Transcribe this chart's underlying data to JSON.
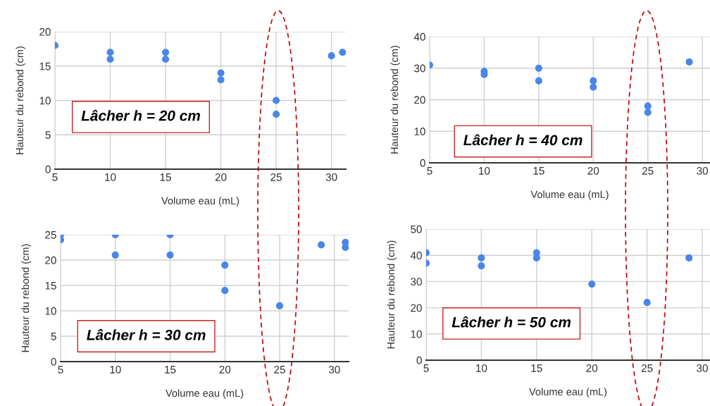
{
  "chart_data": [
    {
      "type": "scatter",
      "xlabel": "Volume eau (mL)",
      "ylabel": "Hauteur du rebond (cm)",
      "annotations": [
        "Lâcher h = 20 cm"
      ],
      "xlim": [
        5,
        31.3
      ],
      "xticks": [
        5,
        10,
        15,
        20,
        25,
        30
      ],
      "ylim": [
        0,
        20
      ],
      "yticks": [
        0,
        5,
        10,
        15,
        20
      ],
      "grid": true,
      "legend": false,
      "marker": "circle",
      "series": [
        {
          "color": "#4a86e8",
          "x": [
            5,
            10,
            10,
            15,
            15,
            20,
            20,
            25,
            25,
            30,
            31
          ],
          "values": [
            18,
            17,
            16,
            17,
            16,
            14,
            13,
            10,
            8,
            16.5,
            17
          ]
        }
      ]
    },
    {
      "type": "scatter",
      "xlabel": "Volume eau (mL)",
      "ylabel": "Hauteur du rebond (cm)",
      "annotations": [
        "Lâcher h = 40 cm"
      ],
      "xlim": [
        5,
        30.7
      ],
      "xticks": [
        5,
        10,
        15,
        20,
        25,
        30
      ],
      "ylim": [
        0,
        40
      ],
      "yticks": [
        0,
        10,
        20,
        30,
        40
      ],
      "grid": true,
      "legend": false,
      "marker": "circle",
      "series": [
        {
          "color": "#4a86e8",
          "x": [
            5,
            10,
            10,
            15,
            15,
            20,
            20,
            25,
            25,
            28.8
          ],
          "values": [
            31,
            29,
            28,
            30,
            26,
            26,
            24,
            18,
            16,
            32
          ]
        }
      ]
    },
    {
      "type": "scatter",
      "xlabel": "Volume eau (mL)",
      "ylabel": "Hauteur du rebond (cm)",
      "annotations": [
        "Lâcher h = 30 cm"
      ],
      "xlim": [
        5,
        31.3
      ],
      "xticks": [
        5,
        10,
        15,
        20,
        25,
        30
      ],
      "ylim": [
        0,
        25
      ],
      "yticks": [
        0,
        5,
        10,
        15,
        20,
        25
      ],
      "grid": true,
      "legend": false,
      "marker": "circle",
      "series": [
        {
          "color": "#4a86e8",
          "x": [
            5,
            5,
            10,
            10,
            15,
            15,
            20,
            20,
            25,
            28.8,
            31,
            31
          ],
          "values": [
            25,
            24,
            25,
            21,
            25,
            21,
            19,
            14,
            11,
            23,
            23.5,
            22.5
          ]
        }
      ]
    },
    {
      "type": "scatter",
      "xlabel": "Volume eau (mL)",
      "ylabel": "Hauteur du rebond (cm)",
      "annotations": [
        "Lâcher h = 50 cm"
      ],
      "xlim": [
        5,
        30.7
      ],
      "xticks": [
        5,
        10,
        15,
        20,
        25,
        30
      ],
      "ylim": [
        0,
        50
      ],
      "yticks": [
        0,
        10,
        20,
        30,
        40,
        50
      ],
      "grid": true,
      "legend": false,
      "marker": "circle",
      "series": [
        {
          "color": "#4a86e8",
          "x": [
            5,
            5,
            10,
            10,
            15,
            15,
            20,
            25,
            28.8
          ],
          "values": [
            41,
            37,
            39,
            36,
            41,
            39,
            29,
            22,
            39
          ]
        }
      ]
    }
  ]
}
